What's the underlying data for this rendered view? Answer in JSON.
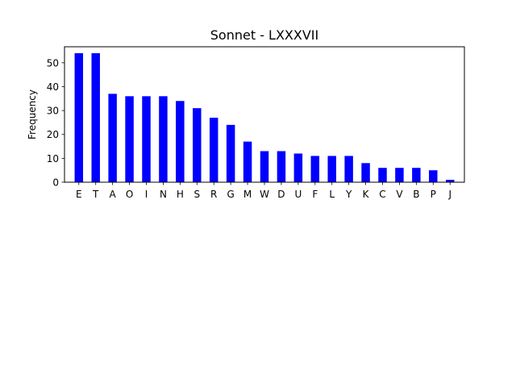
{
  "chart_data": {
    "type": "bar",
    "title": "Sonnet - LXXXVII",
    "xlabel": "",
    "ylabel": "Frequency",
    "categories": [
      "E",
      "T",
      "A",
      "O",
      "I",
      "N",
      "H",
      "S",
      "R",
      "G",
      "M",
      "W",
      "D",
      "U",
      "F",
      "L",
      "Y",
      "K",
      "C",
      "V",
      "B",
      "P",
      "J"
    ],
    "values": [
      54,
      54,
      37,
      36,
      36,
      36,
      34,
      31,
      27,
      24,
      17,
      13,
      13,
      12,
      11,
      11,
      11,
      8,
      6,
      6,
      6,
      5,
      1
    ],
    "ylim": [
      0,
      56.7
    ],
    "yticks": [
      0,
      10,
      20,
      30,
      40,
      50
    ],
    "bar_color": "#0000ff",
    "grid": false
  }
}
